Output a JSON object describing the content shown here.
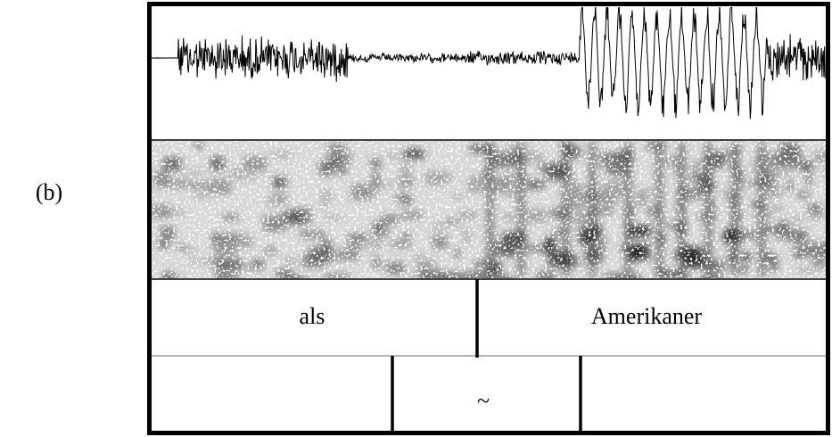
{
  "label": "(b)",
  "word_tier": [
    "als",
    "Amerikaner"
  ],
  "sub_tier": [
    "~"
  ]
}
